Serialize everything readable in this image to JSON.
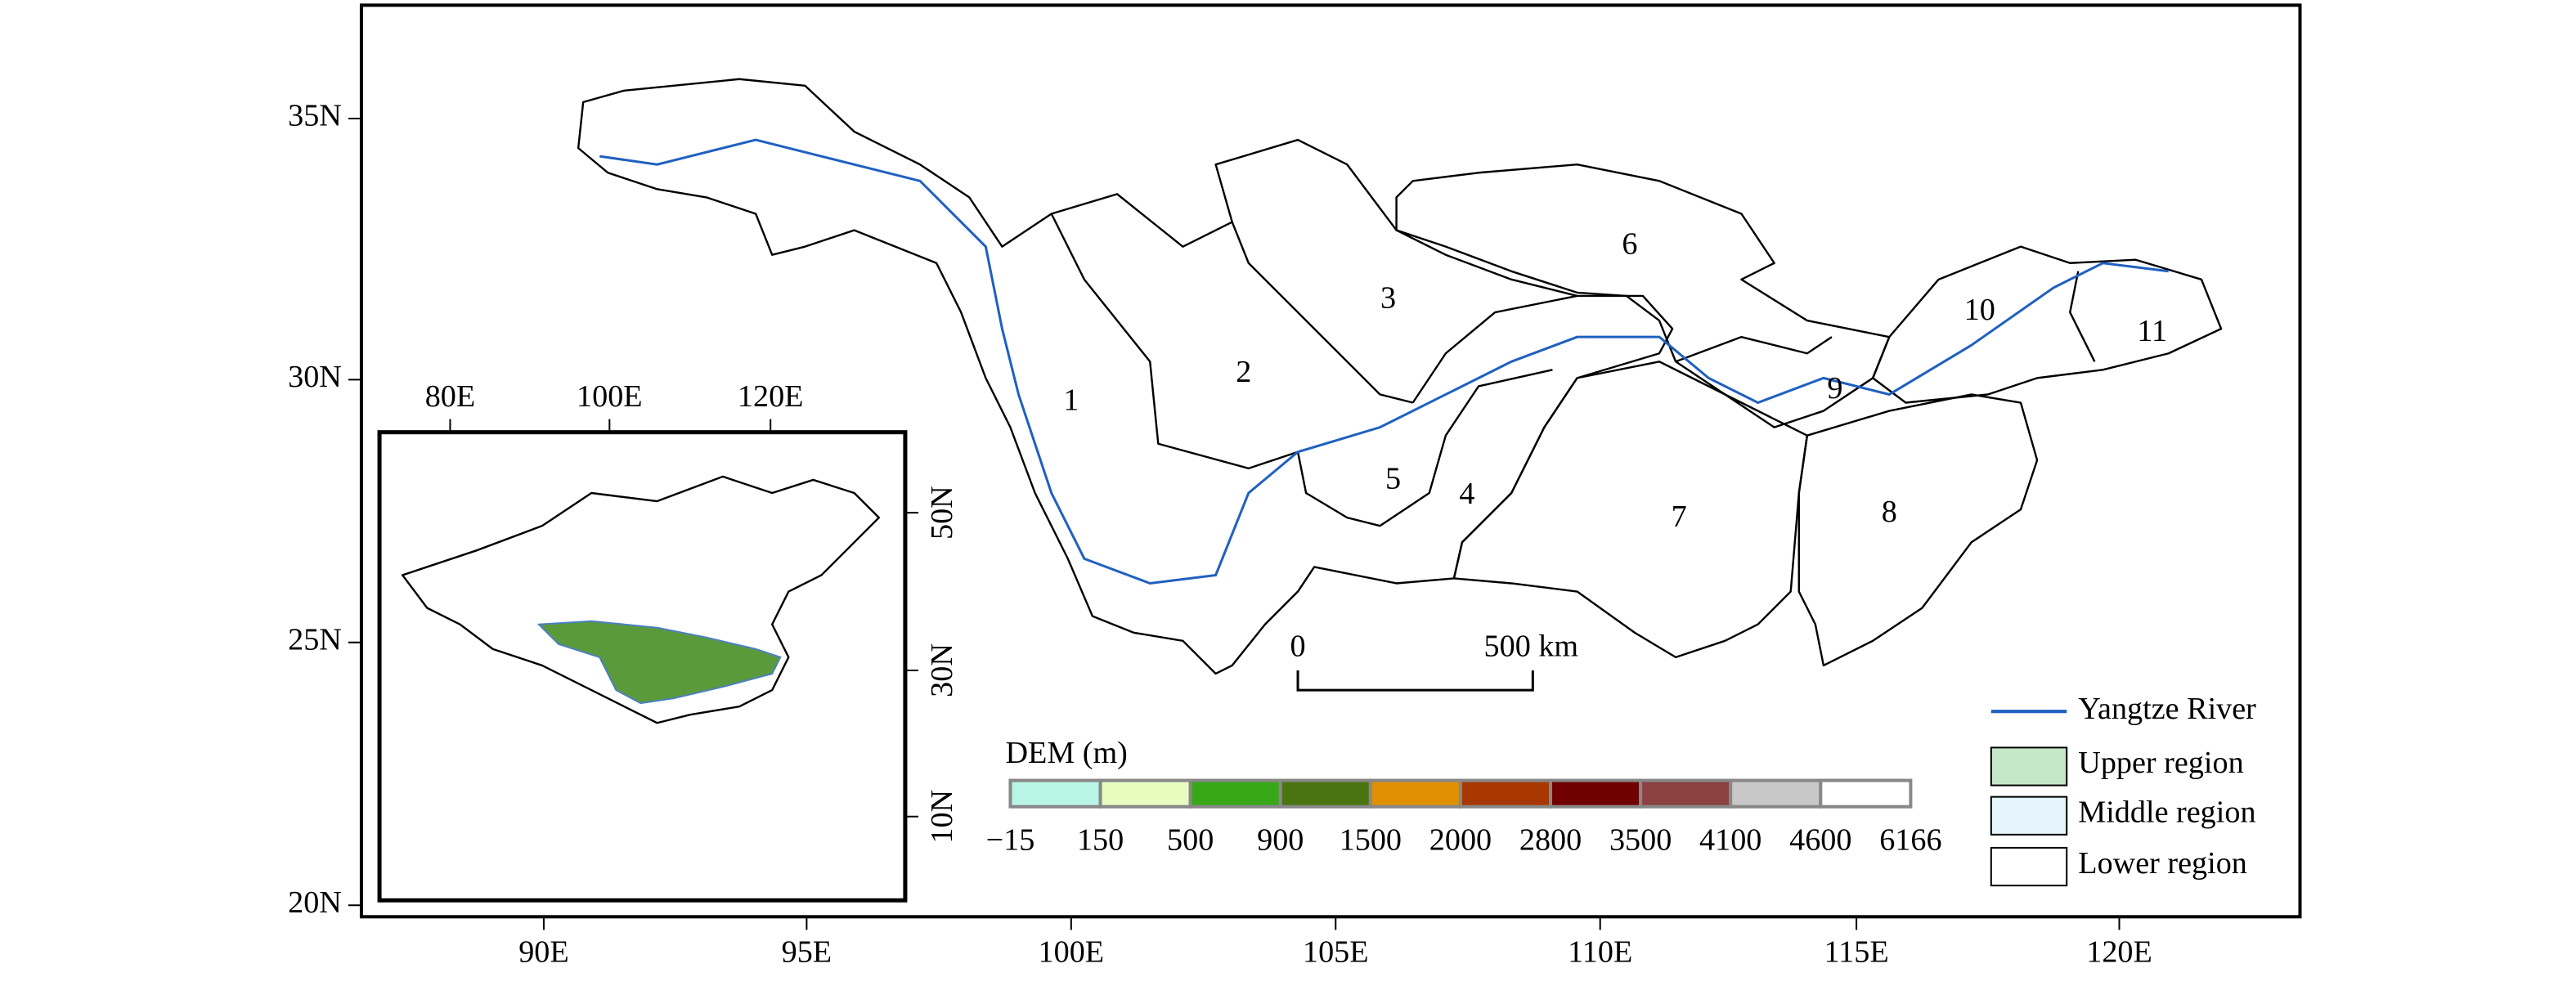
{
  "map": {
    "lat_labels": [
      "35N",
      "30N",
      "25N",
      "20N"
    ],
    "lon_labels": [
      "90E",
      "95E",
      "100E",
      "105E",
      "110E",
      "115E",
      "120E"
    ],
    "regions": [
      "1",
      "2",
      "3",
      "4",
      "5",
      "6",
      "7",
      "8",
      "9",
      "10",
      "11"
    ],
    "scale_bar": [
      "0",
      "500 km"
    ],
    "dem": {
      "title": "DEM (m)",
      "labels": [
        "−15",
        "150",
        "500",
        "900",
        "1500",
        "2000",
        "2800",
        "3500",
        "4100",
        "4600",
        "6166"
      ]
    },
    "legend": [
      "Yangtze River",
      "Upper region",
      "Middle region",
      "Lower region"
    ],
    "inset": {
      "lon_labels": [
        "80E",
        "100E",
        "120E"
      ],
      "lat_labels": [
        "50N",
        "30N",
        "10N"
      ]
    }
  }
}
